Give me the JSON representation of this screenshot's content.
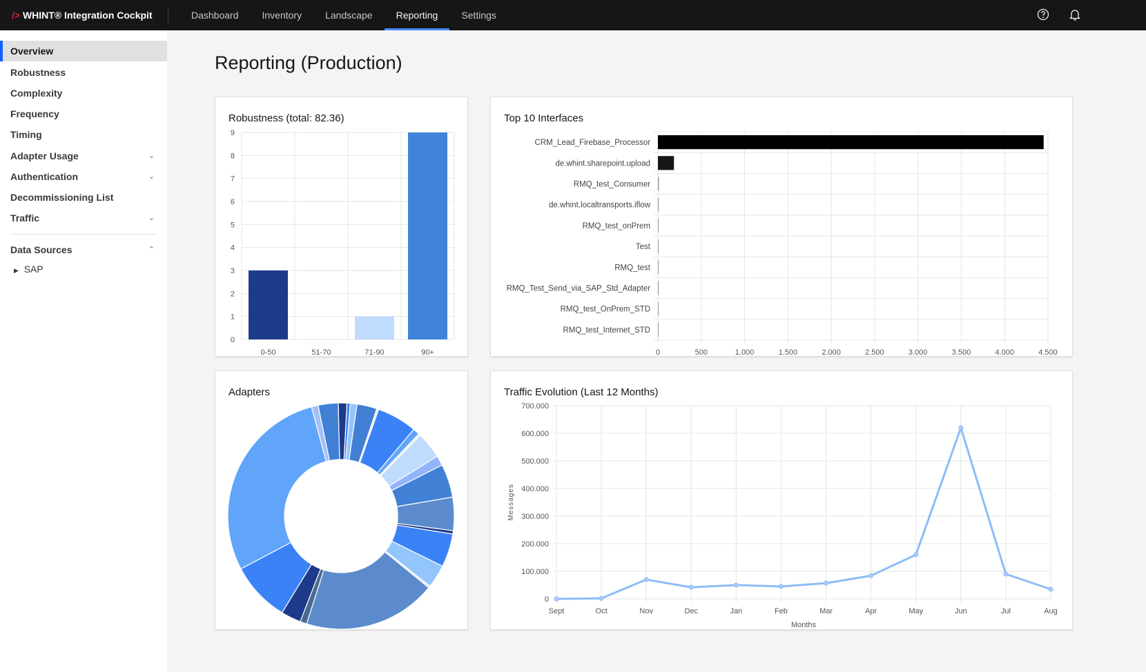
{
  "app": {
    "logo": "/>",
    "title": "WHINT® Integration Cockpit"
  },
  "nav": [
    {
      "label": "Dashboard"
    },
    {
      "label": "Inventory"
    },
    {
      "label": "Landscape"
    },
    {
      "label": "Reporting",
      "active": true
    },
    {
      "label": "Settings"
    }
  ],
  "header_icons": [
    "help-icon",
    "notification-bell-icon"
  ],
  "sidebar": {
    "items": [
      {
        "label": "Overview",
        "active": true
      },
      {
        "label": "Robustness"
      },
      {
        "label": "Complexity"
      },
      {
        "label": "Frequency"
      },
      {
        "label": "Timing"
      },
      {
        "label": "Adapter Usage",
        "chevron": "down"
      },
      {
        "label": "Authentication",
        "chevron": "down"
      },
      {
        "label": "Decommissioning List"
      },
      {
        "label": "Traffic",
        "chevron": "down"
      }
    ],
    "data_sources": {
      "label": "Data Sources",
      "chevron": "up",
      "children": [
        {
          "label": "SAP"
        }
      ]
    }
  },
  "page_title": "Reporting (Production)",
  "accent": "#0f62fe",
  "chart_data": [
    {
      "type": "bar",
      "title": "Robustness (total: 82.36)",
      "categories": [
        "0-50",
        "51-70",
        "71-90",
        "90+"
      ],
      "values": [
        3,
        0,
        1,
        9
      ],
      "colors": [
        "#1e3a8a",
        "#4b86dc",
        "#bfdbfe",
        "#3f84d8"
      ],
      "ylim": [
        0,
        9
      ],
      "yticks": [
        0,
        1,
        2,
        3,
        4,
        5,
        6,
        7,
        8,
        9
      ],
      "grid": true
    },
    {
      "type": "bar",
      "orientation": "horizontal",
      "title": "Top 10 Interfaces",
      "categories": [
        "CRM_Lead_Firebase_Processor",
        "de.whint.sharepoint.upload",
        "RMQ_test_Consumer",
        "de.whint.localtransports.iflow",
        "RMQ_test_onPrem",
        "Test",
        "RMQ_test",
        "RMQ_Test_Send_via_SAP_Std_Adapter",
        "RMQ_test_OnPrem_STD",
        "RMQ_test_Internet_STD"
      ],
      "values": [
        4450,
        185,
        12,
        9,
        5,
        4,
        3,
        1,
        1,
        1
      ],
      "xlim": [
        0,
        4500
      ],
      "xticks": [
        "0",
        "500",
        "1.000",
        "1.500",
        "2.000",
        "2.500",
        "3.000",
        "3.500",
        "4.000",
        "4.500"
      ],
      "bar_color": "#000000",
      "grid": true
    },
    {
      "type": "pie",
      "donut": true,
      "title": "Adapters",
      "values": [
        1.3,
        0.5,
        1,
        3,
        0.3,
        6,
        1,
        0.3,
        4,
        1.5,
        5,
        5,
        0.5,
        5,
        3.5,
        0.3,
        20,
        1,
        3,
        9,
        30,
        1,
        3
      ],
      "colors": [
        "#1e3a8a",
        "#3b82f6",
        "#93c5fd",
        "#4180d4",
        "#e5e7eb",
        "#3b82f6",
        "#60a5fa",
        "#e5e7eb",
        "#bfdbfe",
        "#93b4fb",
        "#4180d4",
        "#5b8bcc",
        "#1e3a8a",
        "#3b82f6",
        "#93c5fd",
        "#e5e7eb",
        "#5b8bcc",
        "#4a6a90",
        "#1e3a8a",
        "#3b82f6",
        "#60a5fa",
        "#a5c0f8",
        "#4180d4"
      ]
    },
    {
      "type": "line",
      "title": "Traffic Evolution (Last 12 Months)",
      "xlabel": "Months",
      "ylabel": "Messages",
      "categories": [
        "Sept",
        "Oct",
        "Nov",
        "Dec",
        "Jan",
        "Feb",
        "Mar",
        "Apr",
        "May",
        "Jun",
        "Jul",
        "Aug"
      ],
      "values": [
        0,
        2000,
        70000,
        42000,
        50000,
        45000,
        57000,
        84000,
        160000,
        620000,
        90000,
        35000
      ],
      "ylim": [
        0,
        700000
      ],
      "yticks": [
        "0",
        "100.000",
        "200.000",
        "300.000",
        "400.000",
        "500.000",
        "600.000",
        "700.000"
      ],
      "color": "#8cbcf8",
      "grid": true
    }
  ]
}
